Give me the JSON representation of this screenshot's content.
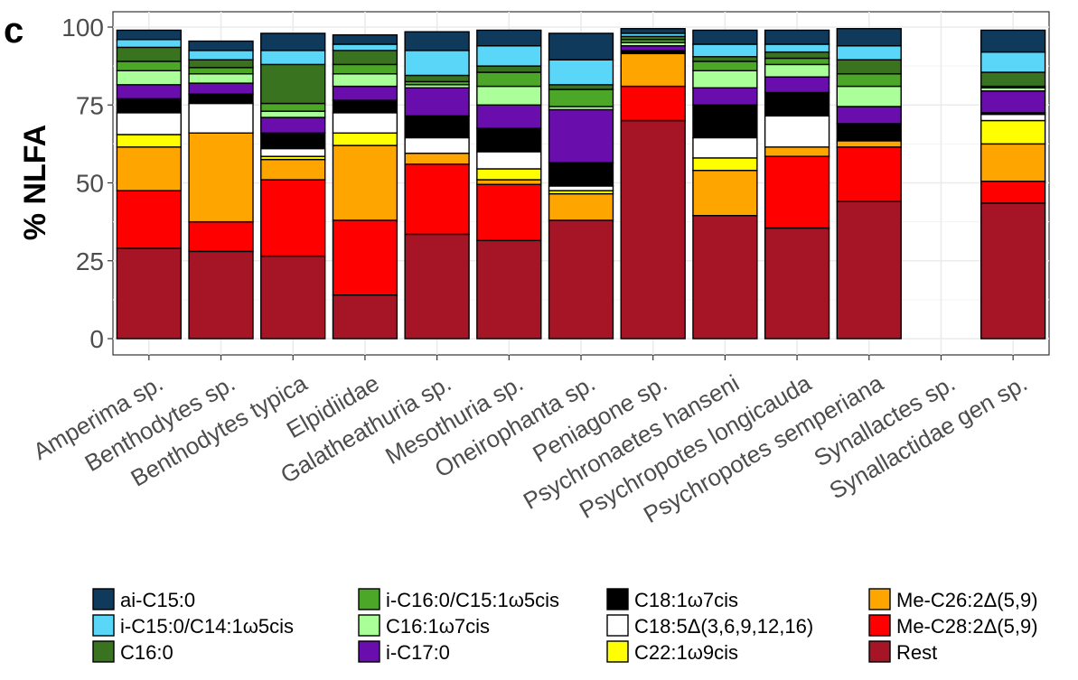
{
  "chart_data": {
    "type": "bar",
    "stacked": true,
    "panel_label": "c",
    "title": "",
    "ylabel": "% NLFA",
    "xlabel": "",
    "ylim": [
      0,
      100
    ],
    "yticks": [
      0,
      25,
      50,
      75,
      100
    ],
    "grid": true,
    "legend_position": "bottom",
    "categories": [
      "Amperima sp.",
      "Benthodytes sp.",
      "Benthodytes typica",
      "Elpidiidae",
      "Galatheathuria sp.",
      "Mesothuria sp.",
      "Oneirophanta sp.",
      "Peniagone sp.",
      "Psychronaetes hanseni",
      "Psychropotes longicauda",
      "Psychropotes semperiana",
      "Synallactes sp.",
      "Synallactidae gen sp."
    ],
    "series": [
      {
        "name": "Rest",
        "color": "#A51526",
        "values": [
          29,
          28,
          26.5,
          14,
          33.5,
          31.5,
          38,
          70,
          39.5,
          35.5,
          44,
          0,
          43.5
        ]
      },
      {
        "name": "Me-C28:2Δ(5,9)",
        "color": "#FF0000",
        "values": [
          18.5,
          9.5,
          24.5,
          24,
          22.5,
          18,
          0,
          11,
          0,
          23,
          17.5,
          0,
          7
        ]
      },
      {
        "name": "Me-C26:2Δ(5,9)",
        "color": "#FFA500",
        "values": [
          14,
          28.5,
          6.5,
          24,
          3.5,
          1.5,
          8.5,
          10.5,
          14.5,
          3,
          2,
          0,
          12
        ]
      },
      {
        "name": "C22:1ω9cis",
        "color": "#FFFF00",
        "values": [
          4,
          0,
          1,
          4,
          0,
          3.5,
          1,
          0,
          4,
          0,
          0,
          0,
          7.5
        ]
      },
      {
        "name": "C18:5Δ(3,6,9,12,16)",
        "color": "#FFFFFF",
        "values": [
          7,
          9.5,
          2.5,
          6.5,
          5,
          5.5,
          1.5,
          0,
          6.5,
          10,
          0,
          0,
          2
        ]
      },
      {
        "name": "C18:1ω7cis",
        "color": "#000000",
        "values": [
          4.5,
          3,
          5,
          4,
          7,
          7.5,
          7.5,
          1,
          10.5,
          7.5,
          5.5,
          0,
          0.5
        ]
      },
      {
        "name": "i-C17:0",
        "color": "#6A0DAD",
        "values": [
          4.5,
          3.5,
          5,
          4.5,
          9,
          7.5,
          17,
          1.5,
          5.5,
          5,
          5.5,
          0,
          7
        ]
      },
      {
        "name": "C16:1ω7cis",
        "color": "#AAFF99",
        "values": [
          4.5,
          3,
          2,
          4,
          1,
          6,
          1,
          1,
          5.5,
          4,
          6.5,
          0,
          1
        ]
      },
      {
        "name": "i-C16:0/C15:1ω5cis",
        "color": "#4CA628",
        "values": [
          3,
          2,
          2.5,
          3,
          1,
          4.5,
          5.5,
          1,
          3,
          2,
          4,
          0,
          0.5
        ]
      },
      {
        "name": "C16:0",
        "color": "#3A7320",
        "values": [
          4.5,
          2.5,
          12.5,
          4.5,
          2,
          2,
          1.5,
          1,
          1.5,
          2,
          4.5,
          0,
          4.5
        ]
      },
      {
        "name": "i-C15:0/C14:1ω5cis",
        "color": "#5AD6F8",
        "values": [
          2.5,
          3,
          4.5,
          2,
          8,
          6.5,
          8,
          1,
          4,
          2.5,
          4.5,
          0,
          6.5
        ]
      },
      {
        "name": "ai-C15:0",
        "color": "#0F3A5C",
        "values": [
          3,
          3,
          5.5,
          3,
          6,
          5,
          8.5,
          1.5,
          4.5,
          4.5,
          5.5,
          0,
          7
        ]
      }
    ],
    "legend_columns": [
      [
        "ai-C15:0",
        "i-C15:0/C14:1ω5cis",
        "C16:0"
      ],
      [
        "i-C16:0/C15:1ω5cis",
        "C16:1ω7cis",
        "i-C17:0"
      ],
      [
        "C18:1ω7cis",
        "C18:5Δ(3,6,9,12,16)",
        "C22:1ω9cis"
      ],
      [
        "Me-C26:2Δ(5,9)",
        "Me-C28:2Δ(5,9)",
        "Rest"
      ]
    ]
  }
}
